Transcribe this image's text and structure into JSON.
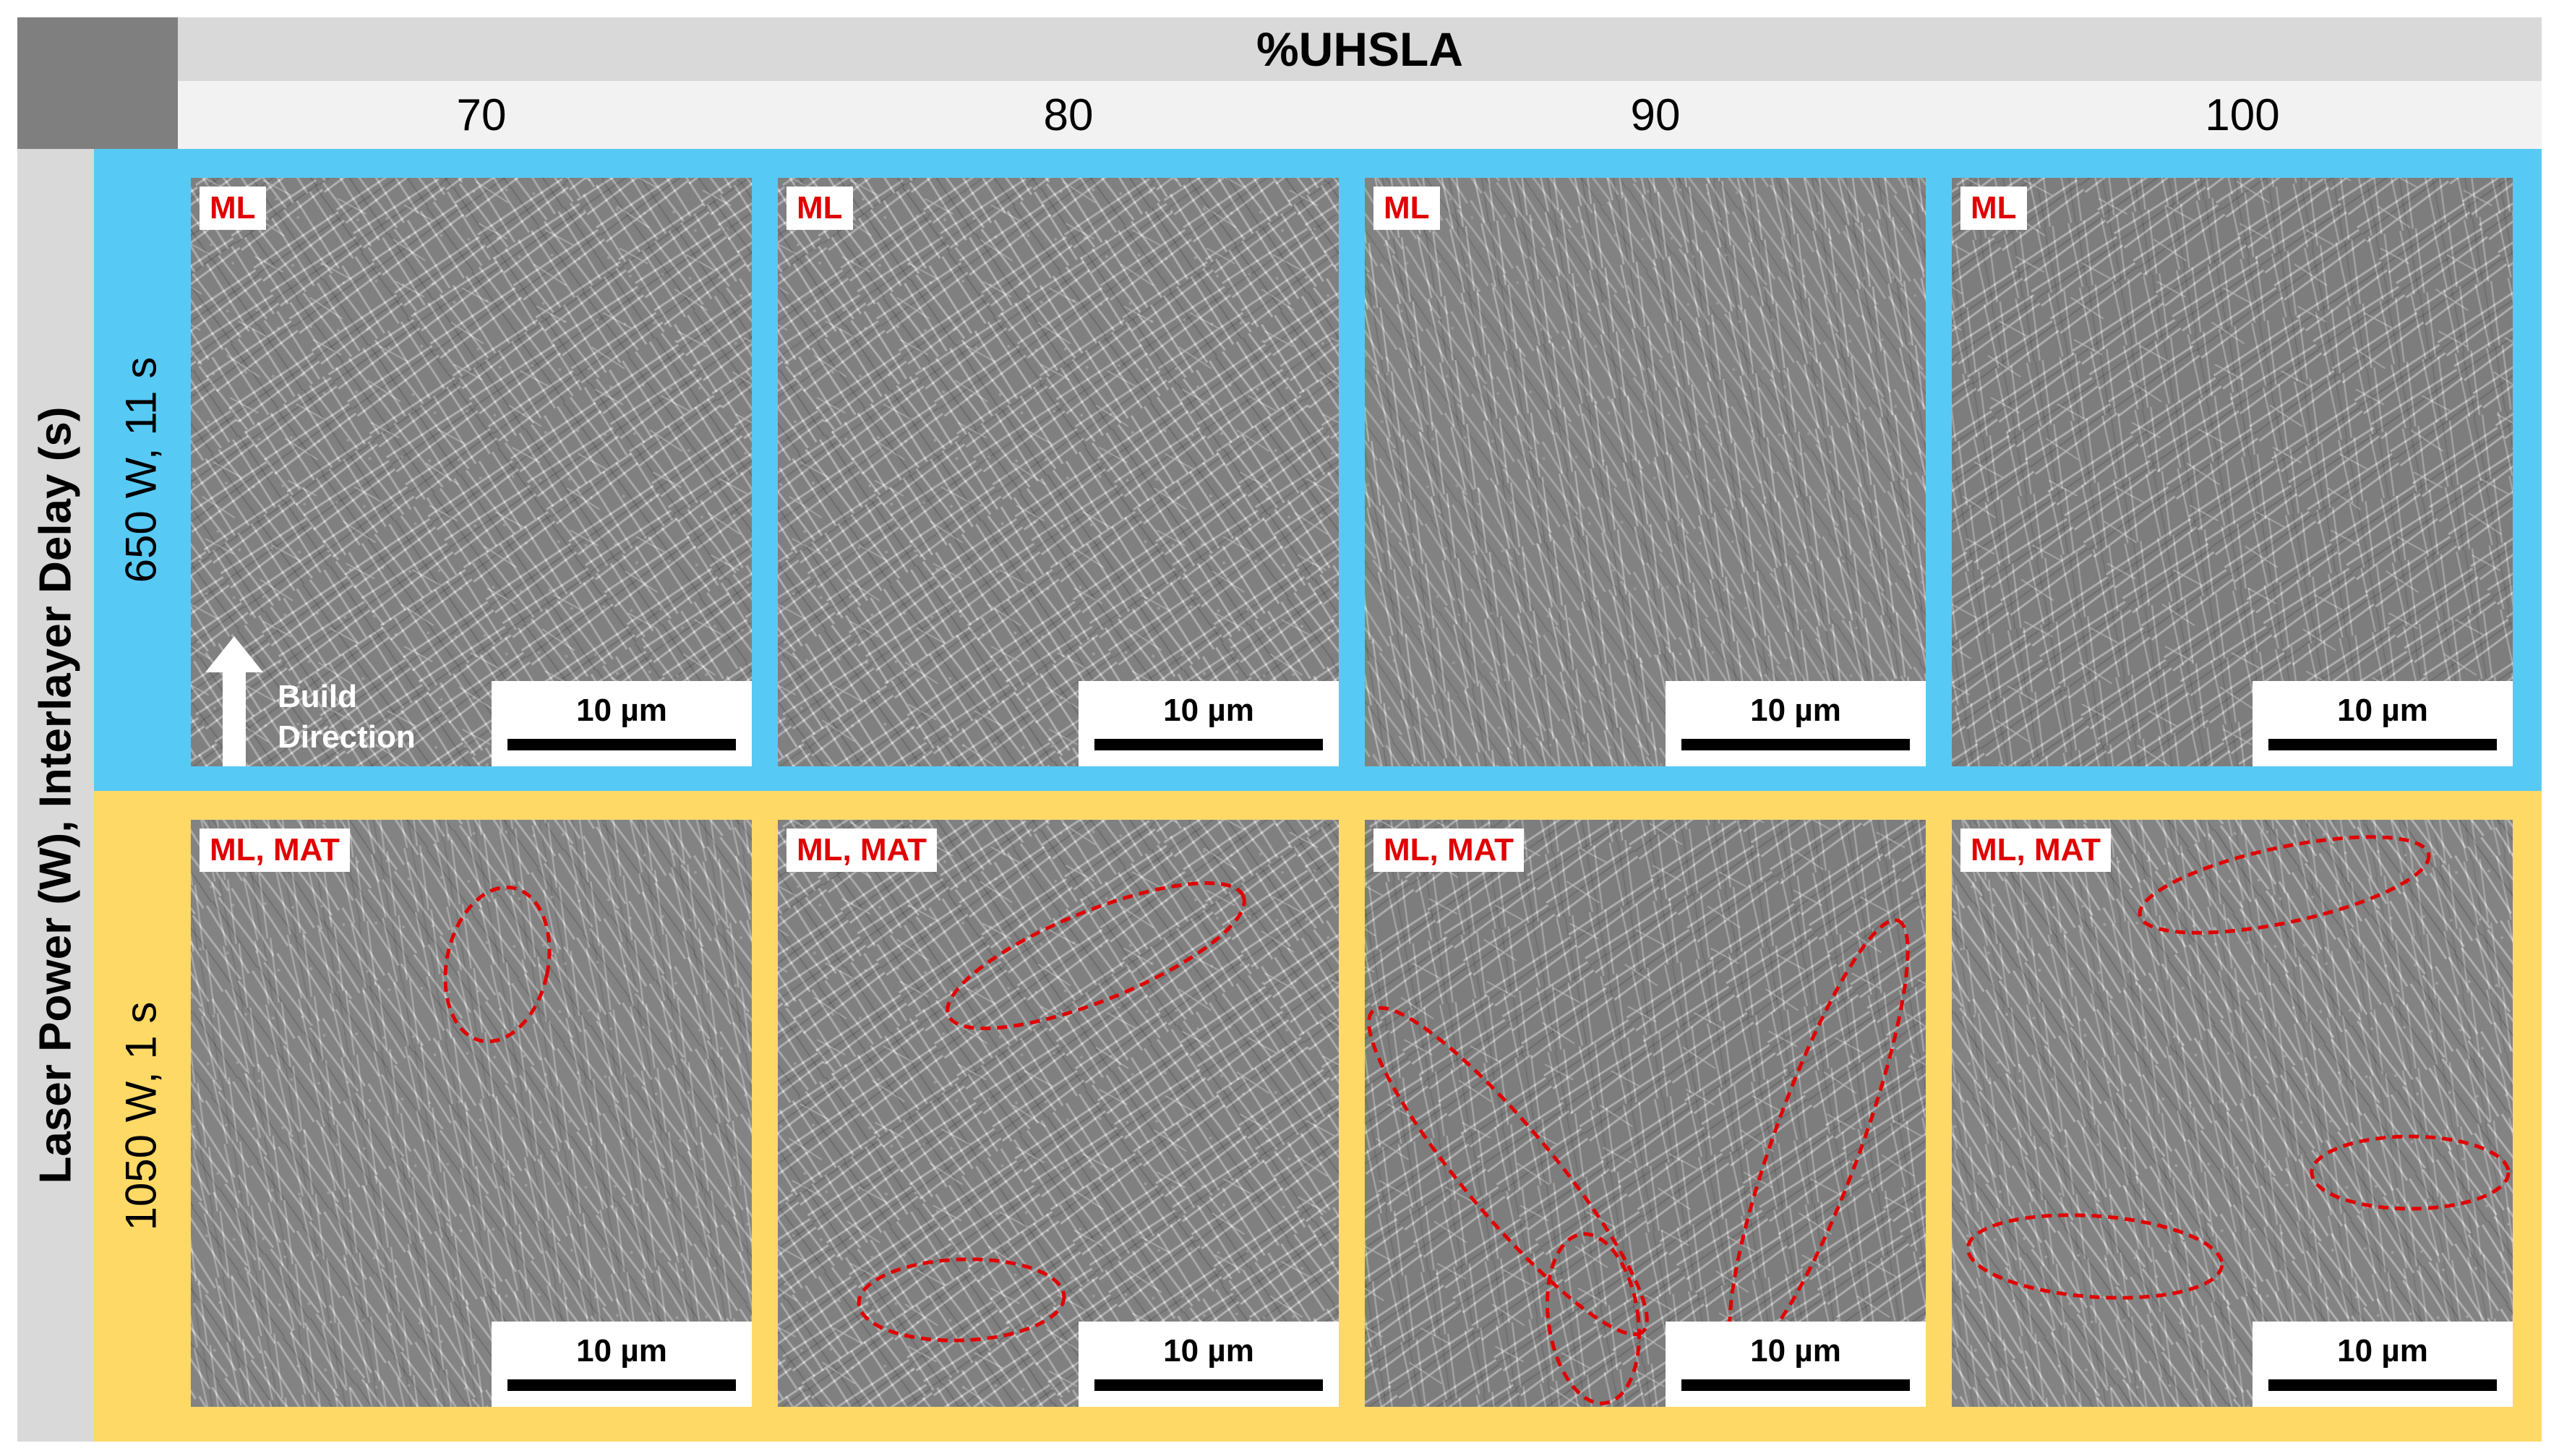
{
  "header": {
    "top_title": "%UHSLA",
    "columns": [
      "70",
      "80",
      "90",
      "100"
    ],
    "row_axis_title": "Laser Power (W), Interlayer Delay (s)"
  },
  "rows": [
    {
      "label": "650 W, 11 s",
      "band_color": "#57c9f5",
      "panels": [
        {
          "tag": "ML",
          "scale": "10 µm"
        },
        {
          "tag": "ML",
          "scale": "10 µm"
        },
        {
          "tag": "ML",
          "scale": "10 µm"
        },
        {
          "tag": "ML",
          "scale": "10 µm"
        }
      ]
    },
    {
      "label": "1050 W, 1 s",
      "band_color": "#ffd966",
      "panels": [
        {
          "tag": "ML, MAT",
          "scale": "10 µm"
        },
        {
          "tag": "ML, MAT",
          "scale": "10 µm"
        },
        {
          "tag": "ML, MAT",
          "scale": "10 µm"
        },
        {
          "tag": "ML, MAT",
          "scale": "10 µm"
        }
      ]
    }
  ],
  "build_direction": {
    "line1": "Build",
    "line2": "Direction"
  },
  "annotation_color": "#e00000",
  "image_content": "SEM micrographs of lath martensite microstructure"
}
